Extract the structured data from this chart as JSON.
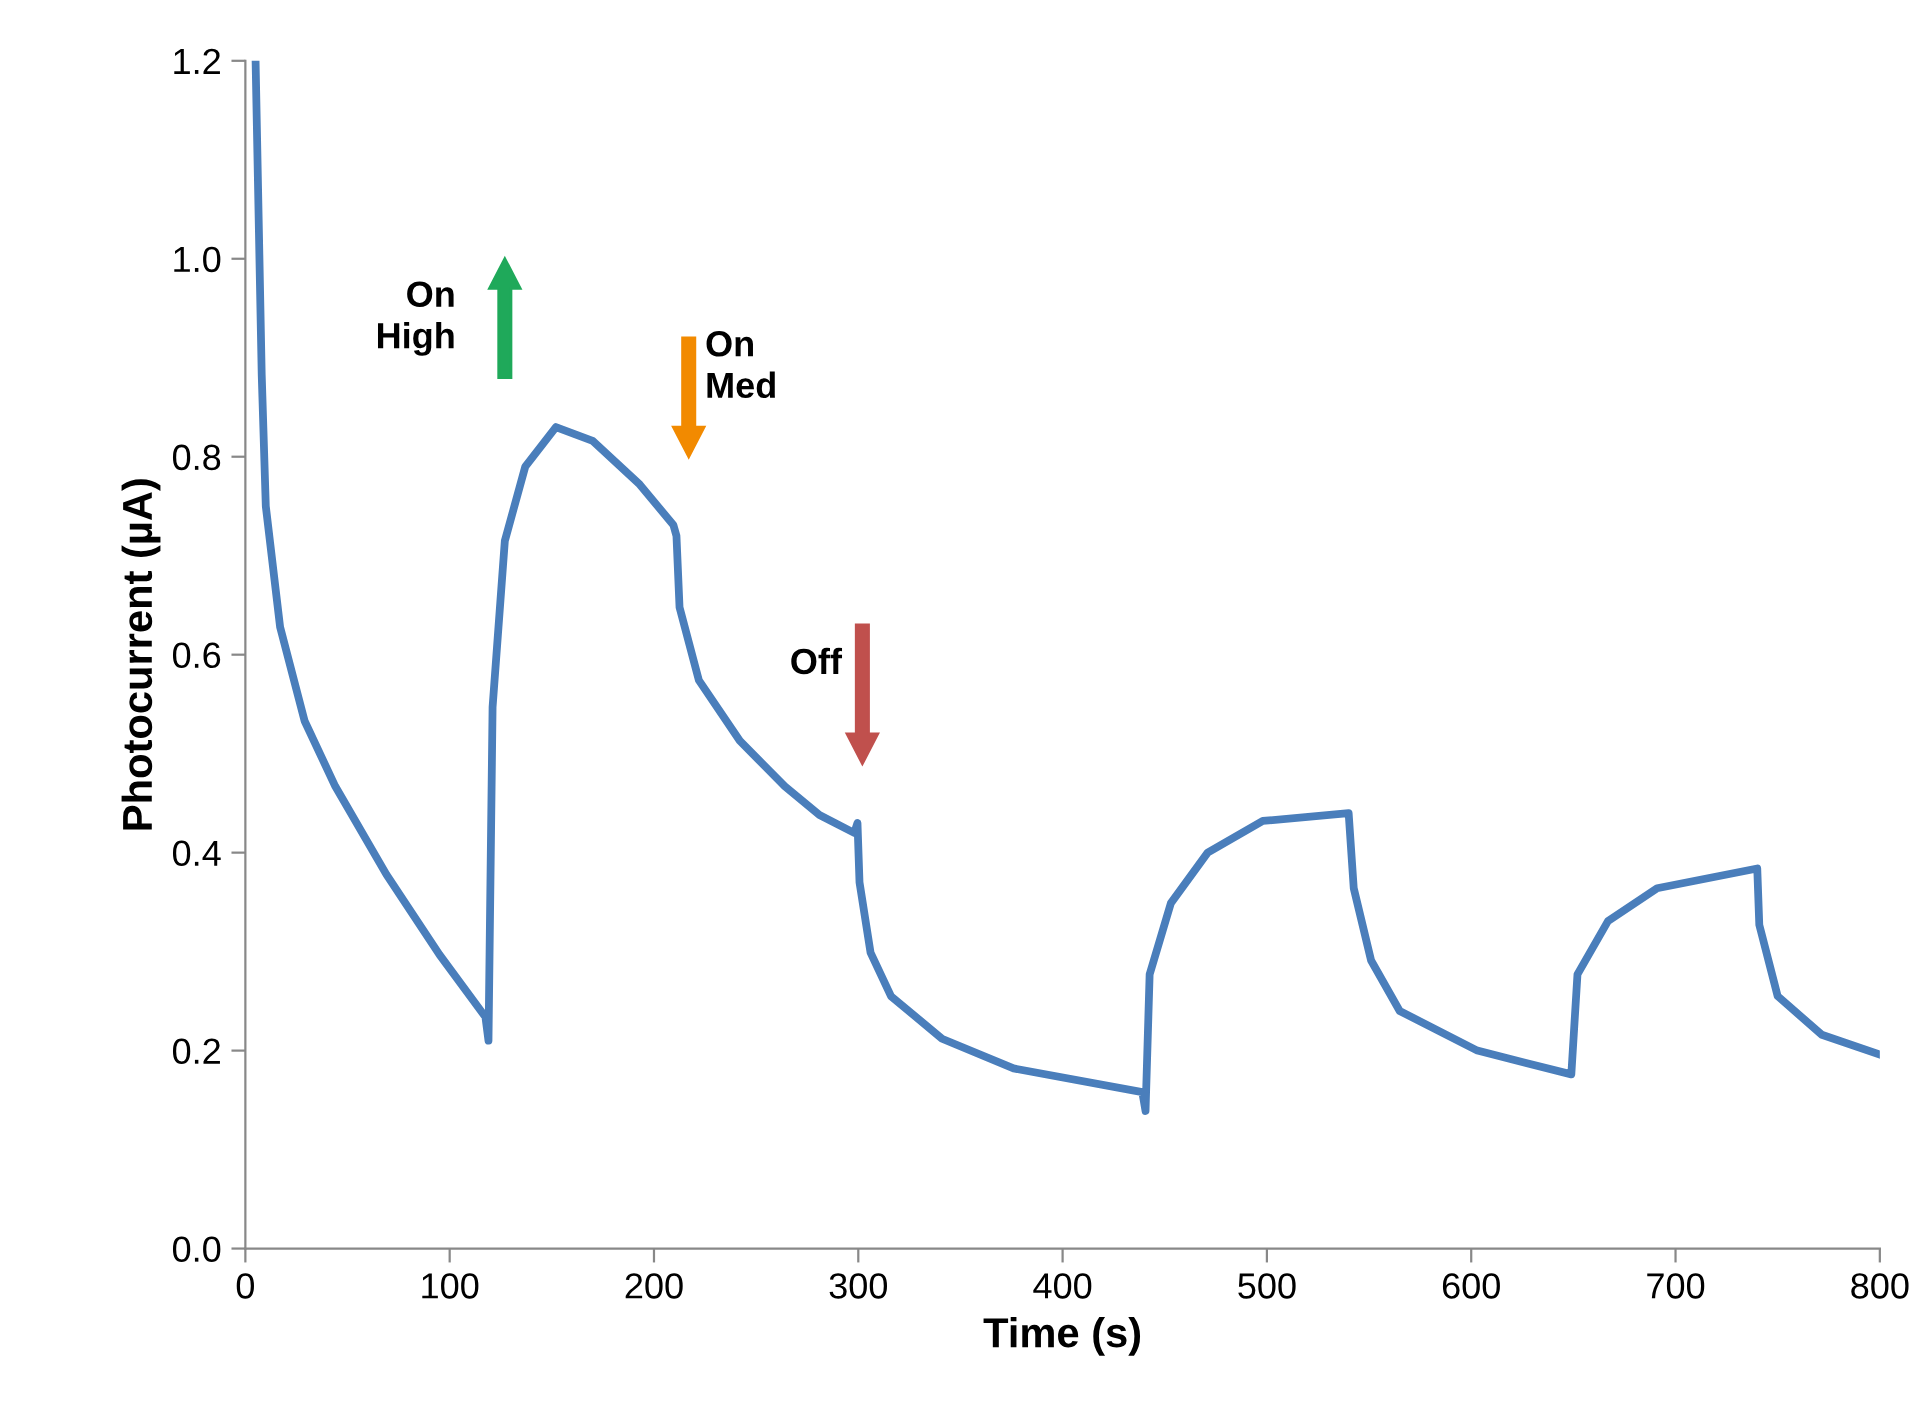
{
  "chart_data": {
    "type": "line",
    "xlabel": "Time (s)",
    "ylabel": "Photocurrent (µA)",
    "xlim": [
      0,
      800
    ],
    "xticks": [
      0,
      100,
      200,
      300,
      400,
      500,
      600,
      700,
      800
    ],
    "ylim": [
      0,
      1.2
    ],
    "yticks": [
      {
        "value": 0,
        "label": "0.0"
      },
      0.2,
      0.4,
      0.6,
      0.8,
      {
        "value": 1.0,
        "label": "1.0"
      },
      1.2
    ],
    "grid": false,
    "legend": false,
    "marker": "none",
    "line_style": "solid",
    "annotations": [
      "On\nHigh",
      "On\nMed",
      "Off"
    ],
    "series": [
      {
        "color": "#4a7ebb",
        "x": [
          5,
          8,
          10,
          17,
          29,
          44,
          69,
          95,
          117.5,
          119,
          121,
          127,
          137,
          152,
          170,
          193,
          209.5,
          211,
          212.5,
          222,
          242,
          264,
          281,
          298,
          299.6,
          300.6,
          306,
          316,
          341,
          376,
          439,
          440.6,
          442.6,
          453,
          471,
          498,
          540,
          542.5,
          551,
          565,
          603,
          649,
          652,
          667,
          691,
          740,
          741,
          750,
          771.6,
          800
        ],
        "values": [
          1.2,
          0.883,
          0.75,
          0.628,
          0.533,
          0.467,
          0.378,
          0.297,
          0.234,
          0.21,
          0.547,
          0.715,
          0.79,
          0.83,
          0.816,
          0.772,
          0.731,
          0.72,
          0.648,
          0.574,
          0.513,
          0.467,
          0.438,
          0.42,
          0.43,
          0.37,
          0.299,
          0.255,
          0.212,
          0.182,
          0.158,
          0.139,
          0.277,
          0.349,
          0.4,
          0.432,
          0.44,
          0.364,
          0.291,
          0.24,
          0.2,
          0.176,
          0.277,
          0.331,
          0.364,
          0.384,
          0.327,
          0.255,
          0.216,
          0.196
        ]
      }
    ]
  }
}
